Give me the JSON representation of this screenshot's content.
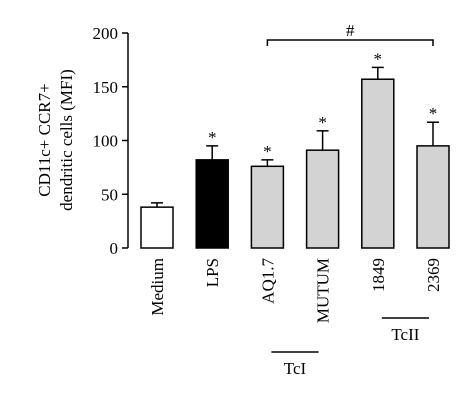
{
  "chart_data": {
    "type": "bar",
    "ylabel": [
      "CD11c+ CCR7+",
      "dendritic cells (MFI)"
    ],
    "categories": [
      "Medium",
      "LPS",
      "AQ1.7",
      "MUTUM",
      "1849",
      "2369"
    ],
    "values": [
      38,
      82,
      76,
      91,
      157,
      95
    ],
    "errors": [
      4,
      13,
      6,
      18,
      11,
      22
    ],
    "colors": [
      "#ffffff",
      "#000000",
      "#d3d3d3",
      "#d3d3d3",
      "#d3d3d3",
      "#d3d3d3"
    ],
    "annotations": [
      null,
      "*",
      "*",
      "*",
      "*",
      "*"
    ],
    "bracket": {
      "label": "#",
      "from": "AQ1.7",
      "to": "2369"
    },
    "groups": [
      {
        "label": "TcI",
        "members": [
          "AQ1.7",
          "MUTUM"
        ]
      },
      {
        "label": "TcII",
        "members": [
          "1849",
          "2369"
        ]
      }
    ],
    "ylim": [
      0,
      200
    ],
    "yticks": [
      0,
      50,
      100,
      150,
      200
    ]
  }
}
